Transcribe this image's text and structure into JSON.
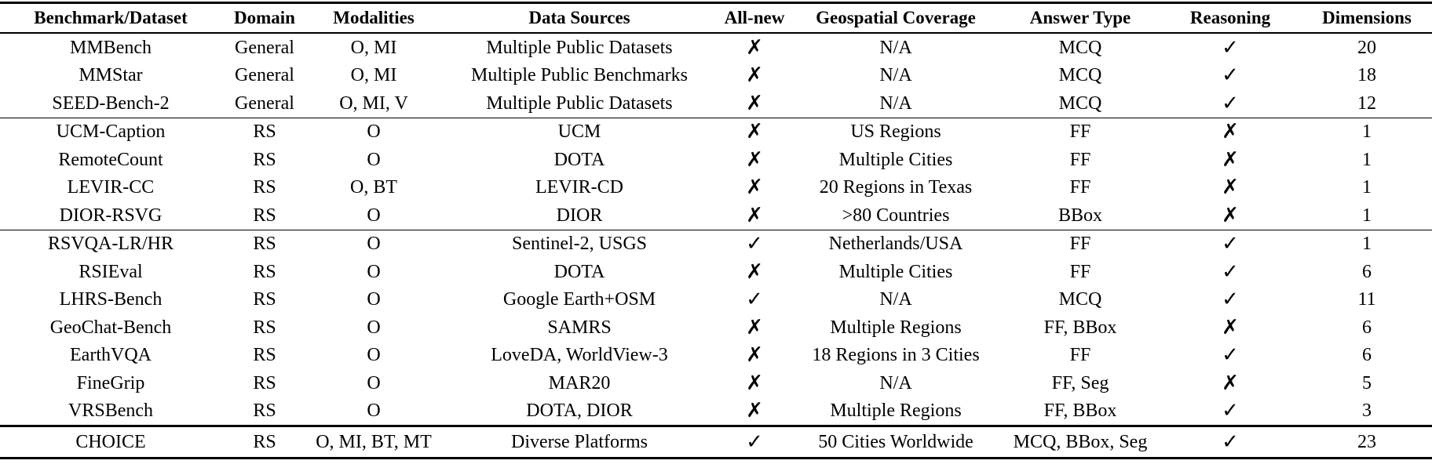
{
  "headers": [
    "Benchmark/Dataset",
    "Domain",
    "Modalities",
    "Data Sources",
    "All-new",
    "Geospatial Coverage",
    "Answer Type",
    "Reasoning",
    "Dimensions"
  ],
  "symbols": {
    "yes": "✓",
    "no": "✗"
  },
  "groups": [
    {
      "rows": [
        {
          "name": "MMBench",
          "domain": "General",
          "modalities": "O, MI",
          "sources": "Multiple Public Datasets",
          "all_new": "✗",
          "coverage": "N/A",
          "answer": "MCQ",
          "reasoning": "✓",
          "dims": "20"
        },
        {
          "name": "MMStar",
          "domain": "General",
          "modalities": "O, MI",
          "sources": "Multiple Public Benchmarks",
          "all_new": "✗",
          "coverage": "N/A",
          "answer": "MCQ",
          "reasoning": "✓",
          "dims": "18"
        },
        {
          "name": "SEED-Bench-2",
          "domain": "General",
          "modalities": "O, MI, V",
          "sources": "Multiple Public Datasets",
          "all_new": "✗",
          "coverage": "N/A",
          "answer": "MCQ",
          "reasoning": "✓",
          "dims": "12"
        }
      ]
    },
    {
      "rows": [
        {
          "name": "UCM-Caption",
          "domain": "RS",
          "modalities": "O",
          "sources": "UCM",
          "all_new": "✗",
          "coverage": "US Regions",
          "answer": "FF",
          "reasoning": "✗",
          "dims": "1"
        },
        {
          "name": "RemoteCount",
          "domain": "RS",
          "modalities": "O",
          "sources": "DOTA",
          "all_new": "✗",
          "coverage": "Multiple Cities",
          "answer": "FF",
          "reasoning": "✗",
          "dims": "1"
        },
        {
          "name": "LEVIR-CC",
          "domain": "RS",
          "modalities": "O, BT",
          "sources": "LEVIR-CD",
          "all_new": "✗",
          "coverage": "20 Regions in Texas",
          "answer": "FF",
          "reasoning": "✗",
          "dims": "1"
        },
        {
          "name": "DIOR-RSVG",
          "domain": "RS",
          "modalities": "O",
          "sources": "DIOR",
          "all_new": "✗",
          "coverage": ">80 Countries",
          "answer": "BBox",
          "reasoning": "✗",
          "dims": "1"
        }
      ]
    },
    {
      "rows": [
        {
          "name": "RSVQA-LR/HR",
          "domain": "RS",
          "modalities": "O",
          "sources": "Sentinel-2, USGS",
          "all_new": "✓",
          "coverage": "Netherlands/USA",
          "answer": "FF",
          "reasoning": "✓",
          "dims": "1"
        },
        {
          "name": "RSIEval",
          "domain": "RS",
          "modalities": "O",
          "sources": "DOTA",
          "all_new": "✗",
          "coverage": "Multiple Cities",
          "answer": "FF",
          "reasoning": "✓",
          "dims": "6"
        },
        {
          "name": "LHRS-Bench",
          "domain": "RS",
          "modalities": "O",
          "sources": "Google Earth+OSM",
          "all_new": "✓",
          "coverage": "N/A",
          "answer": "MCQ",
          "reasoning": "✓",
          "dims": "11"
        },
        {
          "name": "GeoChat-Bench",
          "domain": "RS",
          "modalities": "O",
          "sources": "SAMRS",
          "all_new": "✗",
          "coverage": "Multiple Regions",
          "answer": "FF, BBox",
          "reasoning": "✗",
          "dims": "6"
        },
        {
          "name": "EarthVQA",
          "domain": "RS",
          "modalities": "O",
          "sources": "LoveDA, WorldView-3",
          "all_new": "✗",
          "coverage": "18 Regions in 3 Cities",
          "answer": "FF",
          "reasoning": "✓",
          "dims": "6"
        },
        {
          "name": "FineGrip",
          "domain": "RS",
          "modalities": "O",
          "sources": "MAR20",
          "all_new": "✗",
          "coverage": "N/A",
          "answer": "FF, Seg",
          "reasoning": "✗",
          "dims": "5"
        },
        {
          "name": "VRSBench",
          "domain": "RS",
          "modalities": "O",
          "sources": "DOTA, DIOR",
          "all_new": "✗",
          "coverage": "Multiple Regions",
          "answer": "FF, BBox",
          "reasoning": "✓",
          "dims": "3"
        }
      ]
    },
    {
      "rows": [
        {
          "name": "CHOICE",
          "domain": "RS",
          "modalities": "O, MI, BT, MT",
          "sources": "Diverse Platforms",
          "all_new": "✓",
          "coverage": "50 Cities Worldwide",
          "answer": "MCQ, BBox, Seg",
          "reasoning": "✓",
          "dims": "23"
        }
      ]
    }
  ]
}
